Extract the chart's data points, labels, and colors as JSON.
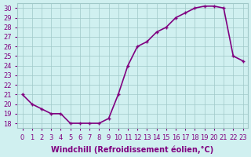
{
  "x": [
    0,
    1,
    2,
    3,
    4,
    5,
    6,
    7,
    8,
    9,
    10,
    11,
    12,
    13,
    14,
    15,
    16,
    17,
    18,
    19,
    20,
    21,
    22,
    23
  ],
  "y": [
    21,
    20,
    19.5,
    19,
    19,
    18,
    18,
    18,
    18,
    18.5,
    21,
    24,
    26,
    26.5,
    27.5,
    28,
    29,
    29.5,
    30,
    30.2,
    30.2,
    30,
    25,
    24.5
  ],
  "line_color": "#800080",
  "marker_color": "#800080",
  "bg_color": "#d0f0f0",
  "grid_color": "#a0c8c8",
  "xlabel": "Windchill (Refroidissement éolien,°C)",
  "xlim": [
    0,
    23
  ],
  "ylim": [
    18,
    30
  ],
  "yticks": [
    18,
    19,
    20,
    21,
    22,
    23,
    24,
    25,
    26,
    27,
    28,
    29,
    30
  ],
  "xticks": [
    0,
    1,
    2,
    3,
    4,
    5,
    6,
    7,
    8,
    9,
    10,
    11,
    12,
    13,
    14,
    15,
    16,
    17,
    18,
    19,
    20,
    21,
    22,
    23
  ],
  "xlabel_fontsize": 7,
  "tick_fontsize": 6,
  "line_width": 1.2,
  "marker_size": 3
}
